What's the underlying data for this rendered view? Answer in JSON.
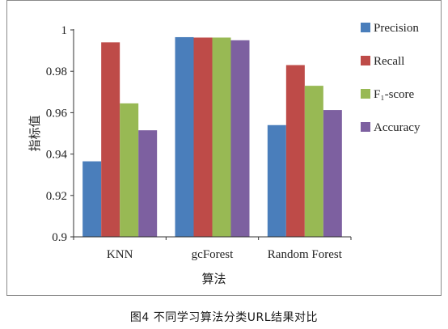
{
  "chart_data": {
    "type": "bar",
    "title": "",
    "xlabel": "算法",
    "ylabel": "指标值",
    "ylim": [
      0.9,
      1.0
    ],
    "yticks": [
      0.9,
      0.92,
      0.94,
      0.96,
      0.98,
      1
    ],
    "ytick_labels": [
      "0.9",
      "0.92",
      "0.94",
      "0.96",
      "0.98",
      "1"
    ],
    "categories": [
      "KNN",
      "gcForest",
      "Random Forest"
    ],
    "series": [
      {
        "name": "Precision",
        "color": "#4a7ebb",
        "values": [
          0.9365,
          0.9965,
          0.954
        ]
      },
      {
        "name": "Recall",
        "color": "#be4b48",
        "values": [
          0.994,
          0.9963,
          0.983
        ]
      },
      {
        "name": "F₁-score",
        "color": "#98b954",
        "values": [
          0.9645,
          0.9963,
          0.973
        ]
      },
      {
        "name": "Accuracy",
        "color": "#7d60a0",
        "values": [
          0.9515,
          0.995,
          0.9613
        ]
      }
    ],
    "legend_position": "right",
    "grid": false
  },
  "caption": "图4   不同学习算法分类URL结果对比"
}
